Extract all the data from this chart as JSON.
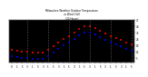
{
  "title": "Milwaukee Weather Outdoor Temperature\nvs Wind Chill\n(24 Hours)",
  "background_color": "#000000",
  "plot_bg_color": "#000000",
  "grid_color": "#555555",
  "outdoor_temp": [
    14,
    13,
    12,
    12,
    11,
    11,
    11,
    14,
    18,
    22,
    26,
    29,
    33,
    37,
    40,
    40,
    38,
    35,
    32,
    29,
    27,
    25,
    22,
    20
  ],
  "wind_chill": [
    7,
    6,
    5,
    5,
    4,
    4,
    4,
    7,
    11,
    15,
    19,
    22,
    26,
    30,
    33,
    33,
    31,
    28,
    25,
    22,
    20,
    18,
    15,
    13
  ],
  "outdoor_color": "#cc0000",
  "windchill_color": "#0000cc",
  "x_times": [
    0,
    1,
    2,
    3,
    4,
    5,
    6,
    7,
    8,
    9,
    10,
    11,
    12,
    13,
    14,
    15,
    16,
    17,
    18,
    19,
    20,
    21,
    22,
    23
  ],
  "x_tick_labels": [
    "0",
    "1",
    "5",
    "3",
    "1",
    "5",
    "3",
    "1",
    "5",
    "3",
    "1",
    "5",
    "3",
    "1",
    "5",
    "3",
    "1",
    "5",
    "3",
    "1",
    "5",
    "3",
    "1",
    "5"
  ],
  "ylim": [
    0,
    47
  ],
  "xlim": [
    -0.5,
    23.5
  ],
  "grid_x_positions": [
    3,
    7,
    11,
    15,
    19,
    23
  ],
  "y_right_ticks": [
    5,
    12,
    19,
    26,
    33,
    40,
    47
  ],
  "y_right_labels": [
    "5",
    "12",
    "19",
    "26",
    "33",
    "40",
    "47"
  ],
  "marker_size": 1.5,
  "title_color": "#000000",
  "tick_color": "#000000",
  "title_bg": "#cccccc"
}
